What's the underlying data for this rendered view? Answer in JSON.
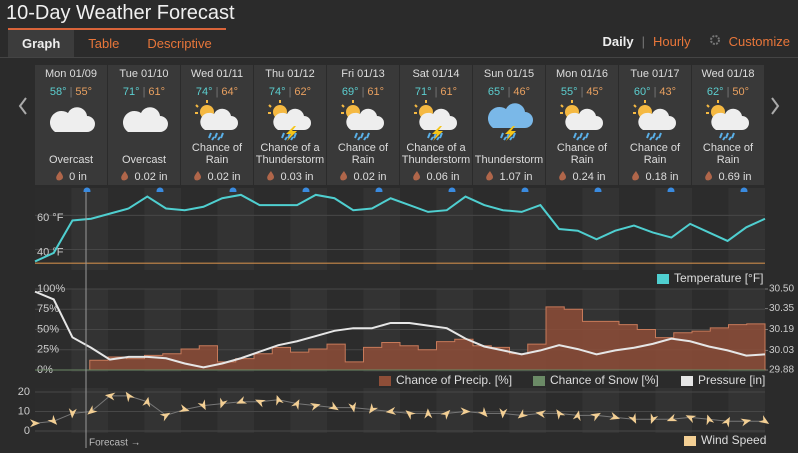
{
  "header": {
    "title": "10-Day Weather Forecast"
  },
  "tabs": [
    "Graph",
    "Table",
    "Descriptive"
  ],
  "active_tab": 0,
  "view_options": [
    "Daily",
    "Hourly"
  ],
  "active_view": 0,
  "customize": "Customize",
  "days": [
    {
      "date": "Mon 01/09",
      "high": "58°",
      "low": "55°",
      "icon": "cloud",
      "condition": "Overcast",
      "precip": "0 in"
    },
    {
      "date": "Tue 01/10",
      "high": "71°",
      "low": "61°",
      "icon": "cloud",
      "condition": "Overcast",
      "precip": "0.02 in"
    },
    {
      "date": "Wed 01/11",
      "high": "74°",
      "low": "64°",
      "icon": "sun-rain",
      "condition": "Chance of Rain",
      "precip": "0.02 in"
    },
    {
      "date": "Thu 01/12",
      "high": "74°",
      "low": "62°",
      "icon": "sun-thunder",
      "condition": "Chance of a Thunderstorm",
      "precip": "0.03 in"
    },
    {
      "date": "Fri 01/13",
      "high": "69°",
      "low": "61°",
      "icon": "sun-rain",
      "condition": "Chance of Rain",
      "precip": "0.02 in"
    },
    {
      "date": "Sat 01/14",
      "high": "71°",
      "low": "61°",
      "icon": "sun-thunder",
      "condition": "Chance of a Thunderstorm",
      "precip": "0.06 in"
    },
    {
      "date": "Sun 01/15",
      "high": "65°",
      "low": "46°",
      "icon": "thunder",
      "condition": "Thunderstorm",
      "precip": "1.07 in"
    },
    {
      "date": "Mon 01/16",
      "high": "55°",
      "low": "45°",
      "icon": "sun-rain",
      "condition": "Chance of Rain",
      "precip": "0.24 in"
    },
    {
      "date": "Tue 01/17",
      "high": "60°",
      "low": "43°",
      "icon": "sun-rain",
      "condition": "Chance of Rain",
      "precip": "0.18 in"
    },
    {
      "date": "Wed 01/18",
      "high": "62°",
      "low": "50°",
      "icon": "sun-rain",
      "condition": "Chance of Rain",
      "precip": "0.69 in"
    }
  ],
  "forecast_label": "Forecast →",
  "chart_data": [
    {
      "type": "line",
      "ylim": [
        28,
        76
      ],
      "yticks": [
        {
          "value": 60,
          "label": "60 °F"
        },
        {
          "value": 40,
          "label": "40 °F"
        }
      ],
      "reference_line": 32,
      "reference_color": "#c98a4a",
      "grid": true,
      "series": [
        {
          "name": "Temperature [°F]",
          "color": "#4fcfd0",
          "values": [
            33,
            38,
            57,
            58,
            61,
            64,
            71,
            64,
            63,
            65,
            70,
            72,
            66,
            66,
            66,
            72,
            70,
            63,
            64,
            70,
            66,
            62,
            63,
            71,
            66,
            63,
            62,
            66,
            52,
            51,
            46,
            51,
            54,
            50,
            47,
            55,
            50,
            45,
            53,
            58
          ]
        }
      ]
    },
    {
      "type": "step-area",
      "ylim": [
        0,
        100
      ],
      "y2lim": [
        29.88,
        30.5
      ],
      "grid": true,
      "yticks": [
        {
          "value": 100,
          "label": "100%"
        },
        {
          "value": 75,
          "label": "75%"
        },
        {
          "value": 50,
          "label": "50%"
        },
        {
          "value": 25,
          "label": "25%"
        },
        {
          "value": 0,
          "label": "0%"
        }
      ],
      "y2ticks": [
        {
          "value": 30.5,
          "label": "30.50"
        },
        30.35,
        30.19,
        30.03,
        29.88
      ],
      "series": [
        {
          "name": "Chance of Precip. [%]",
          "color": "#8e4e38",
          "values": [
            0,
            0,
            0,
            12,
            16,
            14,
            18,
            20,
            26,
            30,
            10,
            14,
            20,
            28,
            22,
            26,
            32,
            10,
            28,
            34,
            30,
            25,
            35,
            38,
            30,
            28,
            20,
            32,
            78,
            75,
            60,
            60,
            56,
            50,
            40,
            46,
            48,
            52,
            56,
            57
          ]
        },
        {
          "name": "Chance of Snow [%]",
          "color": "#6b8a66",
          "values": [
            0,
            0,
            0,
            0,
            0,
            0,
            0,
            0,
            0,
            0,
            0,
            0,
            0,
            0,
            0,
            0,
            0,
            0,
            0,
            0,
            0,
            0,
            0,
            0,
            0,
            0,
            0,
            0,
            0,
            0,
            0,
            0,
            0,
            0,
            0,
            0,
            0,
            0,
            0,
            0
          ]
        },
        {
          "name": "Pressure [in]",
          "color": "#e6e6e6",
          "axis": "y2",
          "values": [
            30.48,
            30.42,
            30.13,
            30.05,
            29.96,
            29.98,
            29.98,
            29.97,
            29.93,
            29.9,
            29.93,
            29.97,
            30.02,
            30.07,
            30.1,
            30.14,
            30.18,
            30.2,
            30.2,
            30.24,
            30.24,
            30.22,
            30.2,
            30.12,
            30.06,
            30.03,
            30.0,
            30.03,
            30.07,
            30.04,
            30.0,
            30.03,
            30.05,
            30.08,
            30.12,
            30.1,
            30.06,
            30.03,
            29.99,
            30.0
          ]
        }
      ]
    },
    {
      "type": "line",
      "ylim": [
        0,
        21
      ],
      "yticks": [
        20,
        10,
        0
      ],
      "grid": true,
      "series": [
        {
          "name": "Wind Speed",
          "color": "#f3cf94",
          "values": [
            4,
            5,
            9,
            10,
            18,
            18,
            15,
            8,
            11,
            13,
            14,
            15,
            15,
            16,
            14,
            13,
            12,
            12,
            11,
            10,
            9,
            9,
            9,
            10,
            9,
            9,
            8,
            9,
            9,
            8,
            8,
            7,
            6,
            6,
            6,
            7,
            6,
            5,
            5,
            5
          ]
        }
      ]
    }
  ]
}
